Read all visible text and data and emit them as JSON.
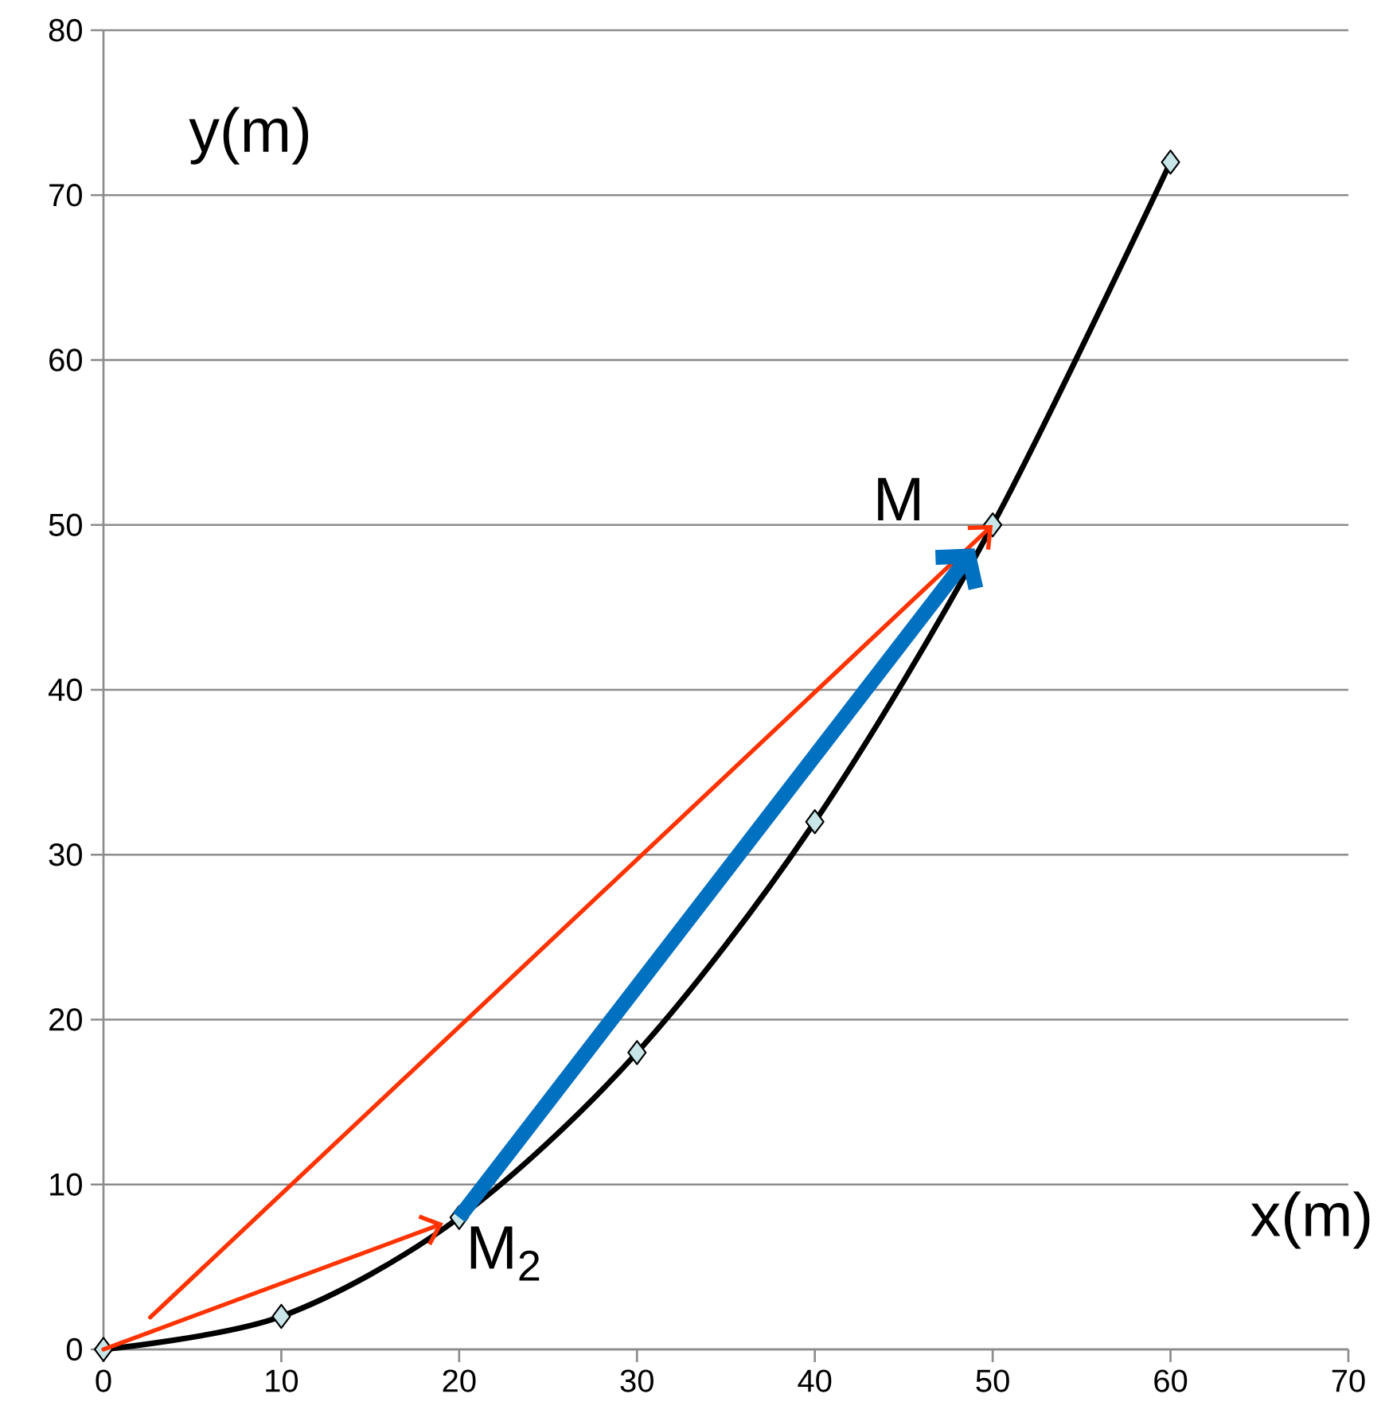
{
  "chart_data": {
    "type": "line",
    "xlabel": "x(m)",
    "ylabel": "y(m)",
    "x": [
      0,
      10,
      20,
      30,
      40,
      50,
      60
    ],
    "series": [
      {
        "color": "#000000",
        "values": [
          0,
          2,
          8,
          18,
          32,
          50,
          72
        ]
      }
    ],
    "xlim": [
      0,
      70
    ],
    "ylim": [
      0,
      80
    ],
    "xticks": [
      0,
      10,
      20,
      30,
      40,
      50,
      60,
      70
    ],
    "yticks": [
      0,
      10,
      20,
      30,
      40,
      50,
      60,
      70,
      80
    ],
    "grid": "y",
    "marker": "diamond",
    "line_style": "solid",
    "annotations": [
      {
        "text": "M",
        "x": 50,
        "y": 50
      },
      {
        "text": "M$_{2}$",
        "x": 20,
        "y": 8
      }
    ]
  }
}
